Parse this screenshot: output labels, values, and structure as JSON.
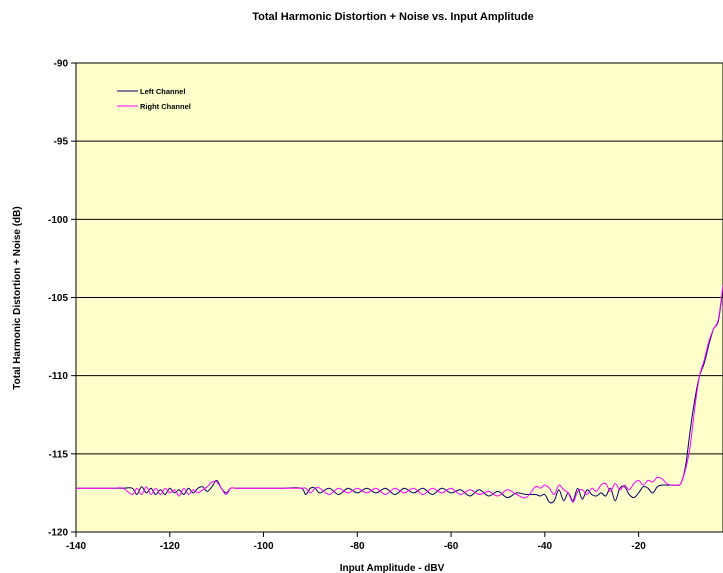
{
  "chart_data": {
    "type": "line",
    "title": "Total Harmonic Distortion + Noise vs. Input Amplitude",
    "xlabel": "Input Amplitude - dBV",
    "ylabel": "Total Harmonic Distortion + Noise (dB)",
    "xlim": [
      -140,
      -2
    ],
    "ylim": [
      -120,
      -90
    ],
    "x_ticks": [
      -140,
      -120,
      -100,
      -80,
      -60,
      -40,
      -20
    ],
    "y_ticks": [
      -90,
      -95,
      -100,
      -105,
      -110,
      -115,
      -120
    ],
    "x_tick_labels": [
      "-140",
      "-120",
      "-100",
      "-80",
      "-60",
      "-40",
      "-20"
    ],
    "y_tick_labels": [
      "-90",
      "-95",
      "-100",
      "-105",
      "-110",
      "-115",
      "-120"
    ],
    "grid": "horizontal",
    "plot_background": "#ffffcc",
    "legend_position": "top-left",
    "series": [
      {
        "name": "Left Channel",
        "color": "#000066",
        "x": [
          -140,
          -136,
          -132,
          -130,
          -128,
          -127,
          -126,
          -125,
          -124,
          -123,
          -122,
          -121,
          -120,
          -119,
          -118,
          -117,
          -116,
          -115,
          -114,
          -113,
          -112,
          -111,
          -110,
          -109,
          -108,
          -107,
          -106,
          -104,
          -100,
          -96,
          -92,
          -91,
          -90,
          -89,
          -88,
          -86,
          -84,
          -82,
          -80,
          -78,
          -76,
          -74,
          -72,
          -70,
          -68,
          -66,
          -64,
          -62,
          -60,
          -58,
          -56,
          -54,
          -52,
          -50,
          -48,
          -46,
          -44,
          -42,
          -41,
          -40,
          -39,
          -38,
          -37,
          -36,
          -35,
          -34,
          -33,
          -32,
          -31,
          -30,
          -29,
          -28,
          -27,
          -26,
          -25,
          -24,
          -23,
          -22,
          -21,
          -20,
          -19,
          -18,
          -17,
          -16,
          -15,
          -14,
          -13,
          -12,
          -11,
          -10,
          -9,
          -8,
          -7,
          -6,
          -5,
          -4,
          -3,
          -2
        ],
        "values": [
          -117.2,
          -117.2,
          -117.2,
          -117.2,
          -117.2,
          -117.6,
          -117.1,
          -117.5,
          -117.2,
          -117.6,
          -117.3,
          -117.6,
          -117.2,
          -117.5,
          -117.3,
          -117.6,
          -117.2,
          -117.5,
          -117.2,
          -117.1,
          -117.4,
          -117.1,
          -116.7,
          -117.2,
          -117.5,
          -117.2,
          -117.2,
          -117.2,
          -117.2,
          -117.2,
          -117.2,
          -117.6,
          -117.2,
          -117.2,
          -117.5,
          -117.2,
          -117.6,
          -117.2,
          -117.5,
          -117.2,
          -117.5,
          -117.2,
          -117.6,
          -117.2,
          -117.5,
          -117.2,
          -117.6,
          -117.2,
          -117.5,
          -117.3,
          -117.7,
          -117.3,
          -117.7,
          -117.4,
          -117.8,
          -117.5,
          -117.6,
          -117.6,
          -117.7,
          -117.6,
          -118.1,
          -118.0,
          -117.3,
          -118.0,
          -117.5,
          -118.0,
          -117.2,
          -117.9,
          -117.3,
          -117.6,
          -117.7,
          -117.5,
          -117.7,
          -117.2,
          -118.0,
          -117.2,
          -117.1,
          -117.6,
          -117.8,
          -117.5,
          -117.1,
          -117.2,
          -117.5,
          -117.1,
          -117.0,
          -117.0,
          -117.0,
          -117.0,
          -116.9,
          -115.8,
          -113.5,
          -111.5,
          -110.0,
          -109.2,
          -108.0,
          -107.0,
          -106.5,
          -104.4
        ]
      },
      {
        "name": "Right Channel",
        "color": "#ff00ff",
        "x": [
          -140,
          -136,
          -132,
          -130,
          -128,
          -127,
          -126,
          -125,
          -124,
          -123,
          -122,
          -121,
          -120,
          -119,
          -118,
          -117,
          -116,
          -115,
          -114,
          -113,
          -112,
          -111,
          -110,
          -109,
          -108,
          -107,
          -106,
          -104,
          -100,
          -96,
          -92,
          -91,
          -90,
          -89,
          -88,
          -86,
          -84,
          -82,
          -80,
          -78,
          -76,
          -74,
          -72,
          -70,
          -68,
          -66,
          -64,
          -62,
          -60,
          -58,
          -56,
          -54,
          -52,
          -50,
          -48,
          -46,
          -44,
          -42,
          -41,
          -40,
          -39,
          -38,
          -37,
          -36,
          -35,
          -34,
          -33,
          -32,
          -31,
          -30,
          -29,
          -28,
          -27,
          -26,
          -25,
          -24,
          -23,
          -22,
          -21,
          -20,
          -19,
          -18,
          -17,
          -16,
          -15,
          -14,
          -13,
          -12,
          -11,
          -10,
          -9,
          -8,
          -7,
          -6,
          -5,
          -4,
          -3,
          -2
        ],
        "values": [
          -117.2,
          -117.2,
          -117.2,
          -117.2,
          -117.6,
          -117.2,
          -117.6,
          -117.1,
          -117.6,
          -117.2,
          -117.6,
          -117.2,
          -117.5,
          -117.3,
          -117.7,
          -117.2,
          -117.6,
          -117.3,
          -117.5,
          -117.3,
          -117.1,
          -116.8,
          -116.8,
          -117.2,
          -117.6,
          -117.2,
          -117.2,
          -117.2,
          -117.2,
          -117.2,
          -117.2,
          -117.2,
          -117.5,
          -117.2,
          -117.2,
          -117.6,
          -117.2,
          -117.5,
          -117.2,
          -117.5,
          -117.2,
          -117.6,
          -117.2,
          -117.5,
          -117.2,
          -117.6,
          -117.2,
          -117.5,
          -117.2,
          -117.6,
          -117.3,
          -117.6,
          -117.4,
          -117.7,
          -117.3,
          -117.6,
          -117.8,
          -117.1,
          -117.2,
          -117.0,
          -117.2,
          -117.6,
          -117.0,
          -117.3,
          -117.5,
          -118.1,
          -117.4,
          -117.3,
          -117.6,
          -117.2,
          -117.4,
          -117.0,
          -116.9,
          -117.4,
          -116.9,
          -117.3,
          -117.0,
          -117.3,
          -116.9,
          -116.7,
          -117.0,
          -116.7,
          -116.8,
          -116.5,
          -116.6,
          -116.9,
          -117.0,
          -117.0,
          -116.9,
          -116.0,
          -114.5,
          -112.0,
          -110.0,
          -109.0,
          -107.8,
          -107.0,
          -106.4,
          -104.2
        ]
      }
    ]
  }
}
